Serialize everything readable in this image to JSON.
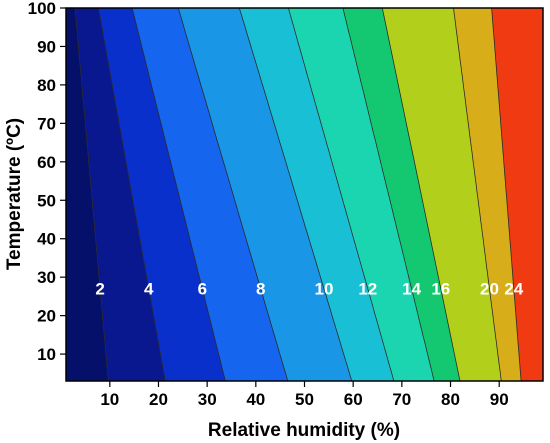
{
  "chart_data": {
    "type": "contour",
    "xlabel": "Relative humidity (%)",
    "ylabel": "Temperature (ºC)",
    "xlim": [
      1,
      99
    ],
    "ylim": [
      3,
      100
    ],
    "x_ticks": [
      10,
      20,
      30,
      40,
      50,
      60,
      70,
      80,
      90
    ],
    "y_ticks": [
      10,
      20,
      30,
      40,
      50,
      60,
      70,
      80,
      90,
      100
    ],
    "levels": [
      {
        "label": "2",
        "value": 2,
        "rh_at_label": 8,
        "color": "#0a1890"
      },
      {
        "label": "4",
        "value": 4,
        "rh_at_label": 18,
        "color": "#0a30cc"
      },
      {
        "label": "6",
        "value": 6,
        "rh_at_label": 29,
        "color": "#1565ee"
      },
      {
        "label": "8",
        "value": 8,
        "rh_at_label": 41,
        "color": "#1a96e6"
      },
      {
        "label": "10",
        "value": 10,
        "rh_at_label": 54,
        "color": "#19bfd4"
      },
      {
        "label": "12",
        "value": 12,
        "rh_at_label": 63,
        "color": "#1bd5b0"
      },
      {
        "label": "14",
        "value": 14,
        "rh_at_label": 72,
        "color": "#13c870"
      },
      {
        "label": "16",
        "value": 16,
        "rh_at_label": 78,
        "color": "#b2cf1c"
      },
      {
        "label": "20",
        "value": 20,
        "rh_at_label": 88,
        "color": "#d8ad1a"
      },
      {
        "label": "24",
        "value": 24,
        "rh_at_label": 93,
        "color": "#f03a12"
      }
    ],
    "region_colors": [
      "#05106b",
      "#0a1890",
      "#0a30cc",
      "#1565ee",
      "#1a96e6",
      "#19bfd4",
      "#1bd5b0",
      "#13c870",
      "#b2cf1c",
      "#d8ad1a",
      "#f03a12",
      "#8a1006"
    ],
    "label_temperature": 27,
    "grid": false,
    "legend": "none"
  }
}
